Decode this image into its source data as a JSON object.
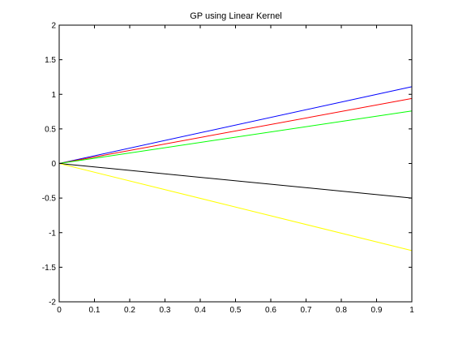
{
  "chart_data": {
    "type": "line",
    "title": "GP using Linear Kernel",
    "xlabel": "",
    "ylabel": "",
    "xlim": [
      0,
      1
    ],
    "ylim": [
      -2,
      2
    ],
    "grid": false,
    "xticks": [
      0,
      0.1,
      0.2,
      0.3,
      0.4,
      0.5,
      0.6,
      0.7,
      0.8,
      0.9,
      1
    ],
    "xtick_labels": [
      "0",
      "0.1",
      "0.2",
      "0.3",
      "0.4",
      "0.5",
      "0.6",
      "0.7",
      "0.8",
      "0.9",
      "1"
    ],
    "yticks": [
      -2,
      -1.5,
      -1,
      -0.5,
      0,
      0.5,
      1,
      1.5,
      2
    ],
    "ytick_labels": [
      "-2",
      "-1.5",
      "-1",
      "-0.5",
      "0",
      "0.5",
      "1",
      "1.5",
      "2"
    ],
    "x": [
      0,
      1
    ],
    "series": [
      {
        "color": "#0000ff",
        "values": [
          0,
          1.11
        ]
      },
      {
        "color": "#ff0000",
        "values": [
          0,
          0.94
        ]
      },
      {
        "color": "#00ff00",
        "values": [
          0,
          0.76
        ]
      },
      {
        "color": "#000000",
        "values": [
          0,
          -0.5
        ]
      },
      {
        "color": "#ffff00",
        "values": [
          0,
          -1.26
        ]
      }
    ]
  }
}
